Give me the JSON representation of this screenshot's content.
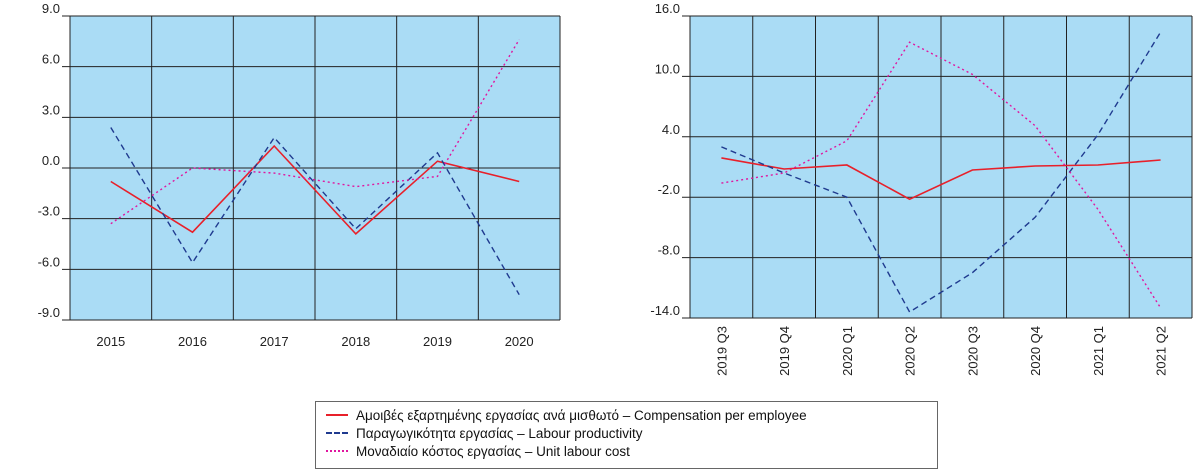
{
  "chart_data": [
    {
      "type": "line",
      "title": "",
      "xlabel": "",
      "ylabel": "",
      "categories": [
        "2015",
        "2016",
        "2017",
        "2018",
        "2019",
        "2020"
      ],
      "ylim": [
        -9.0,
        9.0
      ],
      "yticks": [
        "9.0",
        "6.0",
        "3.0",
        "0.0",
        "-3.0",
        "-6.0",
        "-9.0"
      ],
      "grid": true,
      "series": [
        {
          "name": "Αμοιβές εξαρτημένης εργασίας ανά μισθωτό – Compensation per employee",
          "color": "#e8202a",
          "dash": "solid",
          "values": [
            -0.8,
            -3.8,
            1.3,
            -3.9,
            0.4,
            -0.8
          ]
        },
        {
          "name": "Παραγωγικότητα εργασίας – Labour productivity",
          "color": "#1f3a8f",
          "dash": "dashed",
          "values": [
            2.4,
            -5.6,
            1.8,
            -3.6,
            0.9,
            -7.5
          ]
        },
        {
          "name": "Μοναδιαίο κόστος εργασίας – Unit labour cost",
          "color": "#e0169f",
          "dash": "dotted",
          "values": [
            -3.3,
            0.0,
            -0.3,
            -1.1,
            -0.5,
            7.6
          ]
        }
      ]
    },
    {
      "type": "line",
      "title": "",
      "xlabel": "",
      "ylabel": "",
      "categories": [
        "2019 Q3",
        "2019 Q4",
        "2020 Q1",
        "2020 Q2",
        "2020 Q3",
        "2020 Q4",
        "2021 Q1",
        "2021 Q2"
      ],
      "ylim": [
        -14.0,
        16.0
      ],
      "yticks": [
        "16.0",
        "10.0",
        "4.0",
        "-2.0",
        "-8.0",
        "-14.0"
      ],
      "grid": true,
      "series": [
        {
          "name": "Αμοιβές εξαρτημένης εργασίας ανά μισθωτό – Compensation per employee",
          "color": "#e8202a",
          "dash": "solid",
          "values": [
            1.9,
            0.8,
            1.2,
            -2.2,
            0.7,
            1.1,
            1.2,
            1.7
          ]
        },
        {
          "name": "Παραγωγικότητα εργασίας – Labour productivity",
          "color": "#1f3a8f",
          "dash": "dashed",
          "values": [
            3.0,
            0.4,
            -2.0,
            -13.4,
            -9.5,
            -4.0,
            4.2,
            14.4
          ]
        },
        {
          "name": "Μοναδιαίο κόστος εργασίας – Unit labour cost",
          "color": "#e0169f",
          "dash": "dotted",
          "values": [
            -0.6,
            0.4,
            3.6,
            13.4,
            10.2,
            5.1,
            -3.2,
            -13.0
          ]
        }
      ]
    }
  ],
  "legend": {
    "placement": "bottom-center",
    "items": [
      {
        "label": "Αμοιβές εξαρτημένης εργασίας ανά μισθωτό – Compensation per employee",
        "color": "#e8202a",
        "dash": "solid"
      },
      {
        "label": "Παραγωγικότητα εργασίας – Labour productivity",
        "color": "#1f3a8f",
        "dash": "dashed"
      },
      {
        "label": "Μοναδιαίο κόστος εργασίας – Unit labour cost",
        "color": "#e0169f",
        "dash": "dotted"
      }
    ]
  },
  "colors": {
    "plot_background": "#aadcf5",
    "gridline": "#222222",
    "axis": "#222222"
  }
}
